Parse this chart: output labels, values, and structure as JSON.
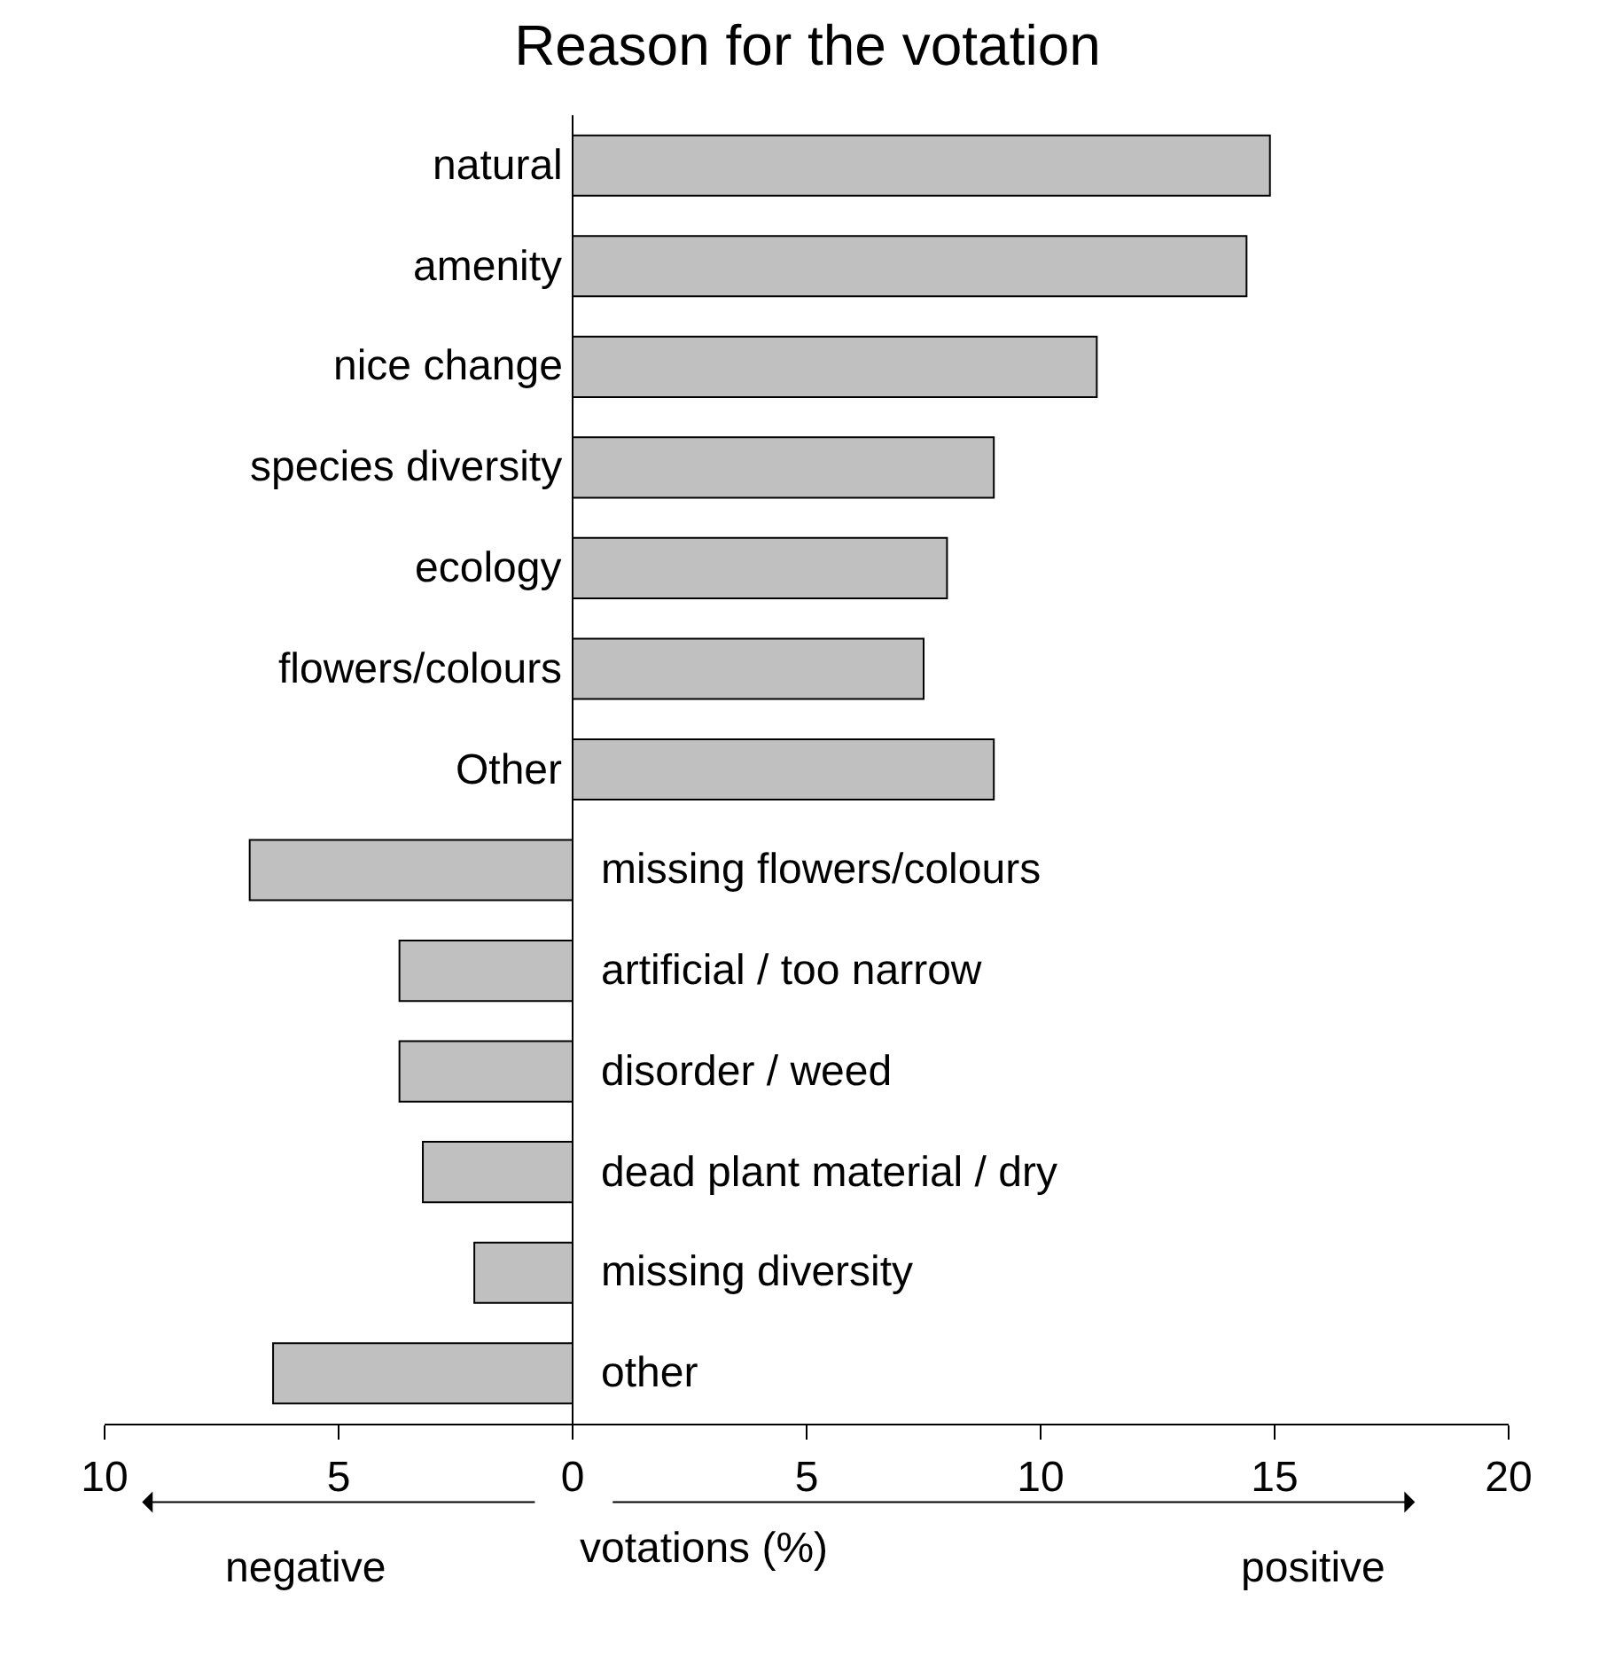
{
  "chart_data": {
    "type": "bar",
    "orientation": "horizontal",
    "title": "Reason for the votation",
    "xlabel": "votations (%)",
    "categories": [
      "natural",
      "amenity",
      "nice change",
      "species diversity",
      "ecology",
      "flowers/colours",
      "Other",
      "missing flowers/colours",
      "artificial / too narrow",
      "disorder / weed",
      "dead plant material / dry",
      "missing diversity",
      "other"
    ],
    "values": [
      14.9,
      14.4,
      11.2,
      9.0,
      8.0,
      7.5,
      9.0,
      -6.9,
      -3.7,
      -3.7,
      -3.2,
      -2.1,
      -6.4
    ],
    "color": "#c0c0c0",
    "xlim": [
      -10,
      20
    ],
    "xticks": [
      {
        "value": -10,
        "label": "10"
      },
      {
        "value": -5,
        "label": "5"
      },
      0,
      5,
      10,
      15,
      20
    ],
    "annotations": [
      "negative",
      "positive"
    ]
  }
}
